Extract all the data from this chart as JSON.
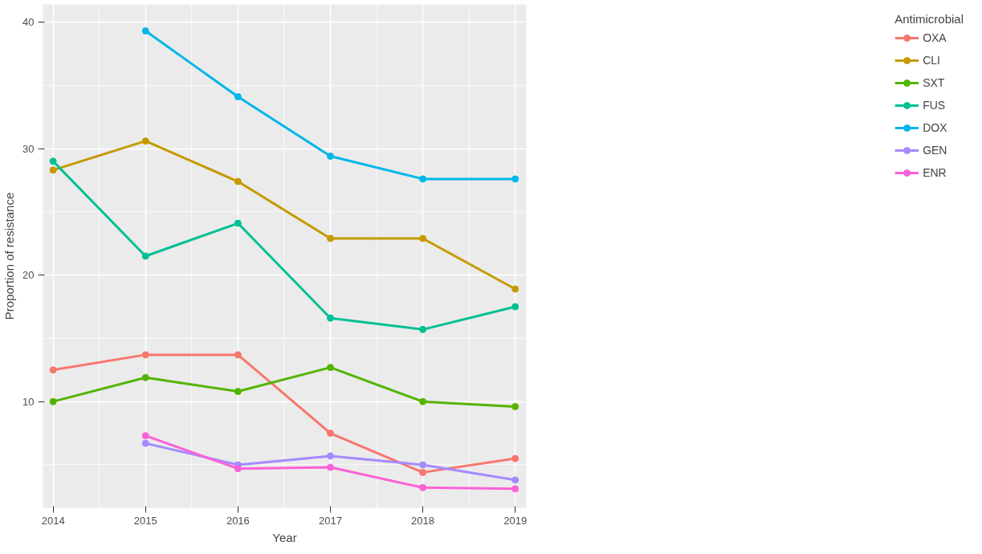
{
  "chart_data": {
    "type": "line",
    "xlabel": "Year",
    "ylabel": "Proportion of resistance",
    "legend_title": "Antimicrobial",
    "x": [
      2014,
      2015,
      2016,
      2017,
      2018,
      2019
    ],
    "xlim": [
      2013.89,
      2019.12
    ],
    "xticks": [
      2014,
      2015,
      2016,
      2017,
      2018,
      2019
    ],
    "ylim": [
      1.6,
      41.4
    ],
    "yticks": [
      10,
      20,
      30,
      40
    ],
    "grid": true,
    "legend": "right",
    "marker": "circle",
    "line_style": "solid",
    "series": [
      {
        "name": "OXA",
        "color": "#f8766d",
        "values": [
          12.5,
          13.7,
          13.7,
          7.5,
          4.4,
          5.5
        ]
      },
      {
        "name": "CLI",
        "color": "#c49a00",
        "values": [
          28.3,
          30.6,
          27.4,
          22.9,
          22.9,
          18.9
        ]
      },
      {
        "name": "SXT",
        "color": "#53b400",
        "values": [
          10.0,
          11.9,
          10.8,
          12.7,
          10.0,
          9.6
        ]
      },
      {
        "name": "FUS",
        "color": "#00c094",
        "values": [
          29.0,
          21.5,
          24.1,
          16.6,
          15.7,
          17.5
        ]
      },
      {
        "name": "DOX",
        "color": "#00b6eb",
        "values": [
          null,
          39.3,
          34.1,
          29.4,
          27.6,
          27.6
        ]
      },
      {
        "name": "GEN",
        "color": "#a58aff",
        "values": [
          null,
          6.7,
          5.0,
          5.7,
          5.0,
          3.8
        ]
      },
      {
        "name": "ENR",
        "color": "#fb61d7",
        "values": [
          null,
          7.3,
          4.7,
          4.8,
          3.2,
          3.1
        ]
      }
    ]
  }
}
